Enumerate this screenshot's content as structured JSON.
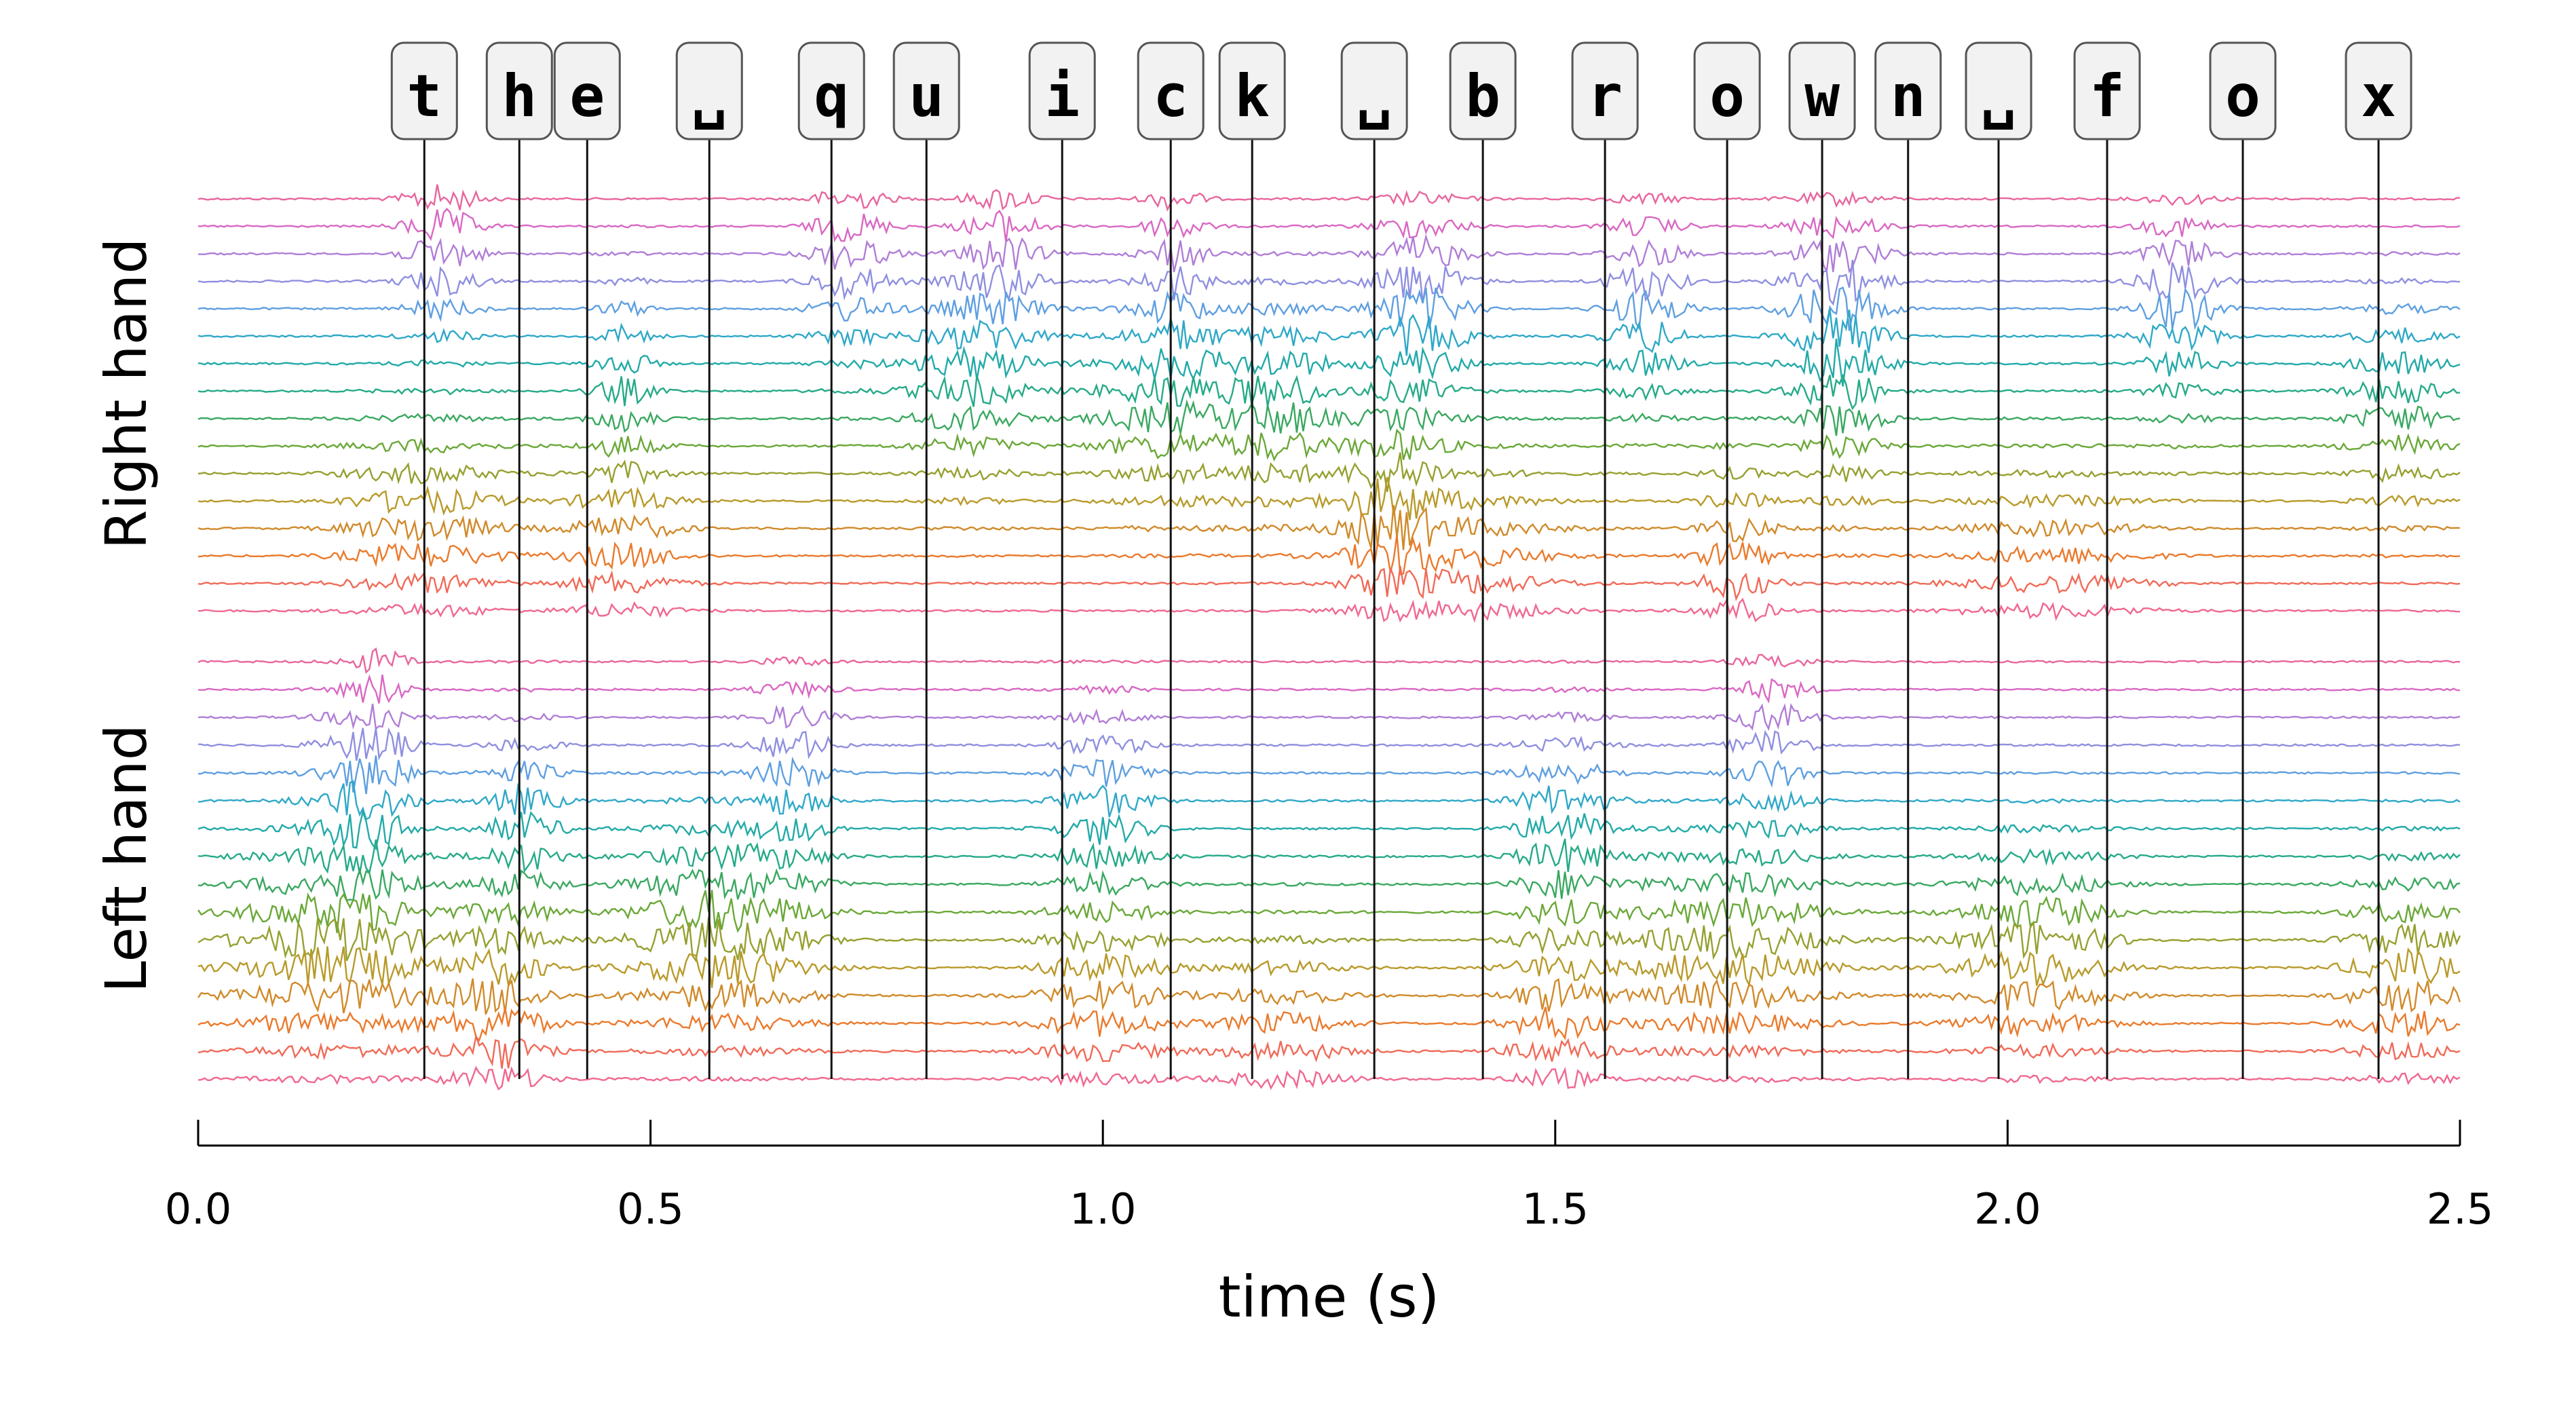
{
  "chart_data": {
    "type": "line",
    "xlabel": "time (s)",
    "xlim": [
      0.0,
      2.5
    ],
    "x_ticks": [
      "0.0",
      "0.5",
      "1.0",
      "1.5",
      "2.0",
      "2.5"
    ],
    "groups": [
      {
        "label": "Right hand",
        "channels": 16
      },
      {
        "label": "Left hand",
        "channels": 16
      }
    ],
    "keystrokes": [
      {
        "key": "t",
        "time": 0.25
      },
      {
        "key": "h",
        "time": 0.355
      },
      {
        "key": "e",
        "time": 0.43
      },
      {
        "key": "␣",
        "time": 0.565
      },
      {
        "key": "q",
        "time": 0.7
      },
      {
        "key": "u",
        "time": 0.805
      },
      {
        "key": "i",
        "time": 0.955
      },
      {
        "key": "c",
        "time": 1.075
      },
      {
        "key": "k",
        "time": 1.165
      },
      {
        "key": "␣",
        "time": 1.3
      },
      {
        "key": "b",
        "time": 1.42
      },
      {
        "key": "r",
        "time": 1.555
      },
      {
        "key": "o",
        "time": 1.69
      },
      {
        "key": "w",
        "time": 1.795
      },
      {
        "key": "n",
        "time": 1.89
      },
      {
        "key": "␣",
        "time": 1.99
      },
      {
        "key": "f",
        "time": 2.11
      },
      {
        "key": "o",
        "time": 2.26
      },
      {
        "key": "x",
        "time": 2.41
      }
    ],
    "channel_colors": [
      "#e8669e",
      "#d968c4",
      "#b07ed6",
      "#8f8fe0",
      "#5f9fe0",
      "#2fa8c8",
      "#22aaa8",
      "#26aa88",
      "#3aa860",
      "#6aa838",
      "#96a030",
      "#b89a2a",
      "#d08a2a",
      "#ea7a2c",
      "#f06a58",
      "#f06890"
    ],
    "activity": {
      "Right hand": [
        {
          "t": 0.25,
          "c": 0.8,
          "w": 0.08,
          "a": 0.8
        },
        {
          "t": 0.27,
          "c": 0.1,
          "w": 0.04,
          "a": 1.0
        },
        {
          "t": 0.47,
          "c": 0.85,
          "w": 0.06,
          "a": 0.7
        },
        {
          "t": 0.47,
          "c": 0.45,
          "w": 0.03,
          "a": 0.8
        },
        {
          "t": 0.72,
          "c": 0.15,
          "w": 0.04,
          "a": 1.0
        },
        {
          "t": 0.89,
          "c": 0.15,
          "w": 0.04,
          "a": 1.0
        },
        {
          "t": 0.85,
          "c": 0.45,
          "w": 0.06,
          "a": 0.8
        },
        {
          "t": 1.08,
          "c": 0.5,
          "w": 0.08,
          "a": 0.9
        },
        {
          "t": 1.08,
          "c": 0.15,
          "w": 0.03,
          "a": 1.0
        },
        {
          "t": 1.2,
          "c": 0.5,
          "w": 0.05,
          "a": 0.9
        },
        {
          "t": 1.32,
          "c": 0.75,
          "w": 0.05,
          "a": 1.2
        },
        {
          "t": 1.35,
          "c": 0.25,
          "w": 0.05,
          "a": 1.3
        },
        {
          "t": 1.6,
          "c": 0.25,
          "w": 0.04,
          "a": 1.1
        },
        {
          "t": 1.7,
          "c": 0.9,
          "w": 0.04,
          "a": 0.9
        },
        {
          "t": 1.81,
          "c": 0.25,
          "w": 0.05,
          "a": 1.3
        },
        {
          "t": 1.82,
          "c": 0.5,
          "w": 0.04,
          "a": 0.8
        },
        {
          "t": 2.19,
          "c": 0.25,
          "w": 0.04,
          "a": 1.2
        },
        {
          "t": 2.43,
          "c": 0.5,
          "w": 0.05,
          "a": 0.8
        },
        {
          "t": 1.4,
          "c": 0.9,
          "w": 0.1,
          "a": 0.6
        },
        {
          "t": 2.05,
          "c": 0.9,
          "w": 0.1,
          "a": 0.5
        }
      ],
      "Left hand": [
        {
          "t": 0.15,
          "c": 0.7,
          "w": 0.1,
          "a": 1.2
        },
        {
          "t": 0.18,
          "c": 0.35,
          "w": 0.05,
          "a": 1.0
        },
        {
          "t": 0.2,
          "c": 0.1,
          "w": 0.03,
          "a": 0.8
        },
        {
          "t": 0.33,
          "c": 0.85,
          "w": 0.05,
          "a": 1.2
        },
        {
          "t": 0.36,
          "c": 0.4,
          "w": 0.04,
          "a": 0.9
        },
        {
          "t": 0.58,
          "c": 0.65,
          "w": 0.09,
          "a": 1.3
        },
        {
          "t": 0.66,
          "c": 0.25,
          "w": 0.04,
          "a": 0.9
        },
        {
          "t": 1.0,
          "c": 0.35,
          "w": 0.05,
          "a": 0.9
        },
        {
          "t": 1.0,
          "c": 0.8,
          "w": 0.07,
          "a": 0.8
        },
        {
          "t": 1.51,
          "c": 0.4,
          "w": 0.05,
          "a": 1.0
        },
        {
          "t": 1.5,
          "c": 0.85,
          "w": 0.05,
          "a": 0.9
        },
        {
          "t": 1.69,
          "c": 0.7,
          "w": 0.1,
          "a": 1.0
        },
        {
          "t": 1.74,
          "c": 0.2,
          "w": 0.04,
          "a": 0.9
        },
        {
          "t": 2.03,
          "c": 0.7,
          "w": 0.08,
          "a": 1.1
        },
        {
          "t": 2.44,
          "c": 0.75,
          "w": 0.06,
          "a": 1.0
        },
        {
          "t": 1.2,
          "c": 0.9,
          "w": 0.07,
          "a": 0.6
        }
      ]
    }
  }
}
